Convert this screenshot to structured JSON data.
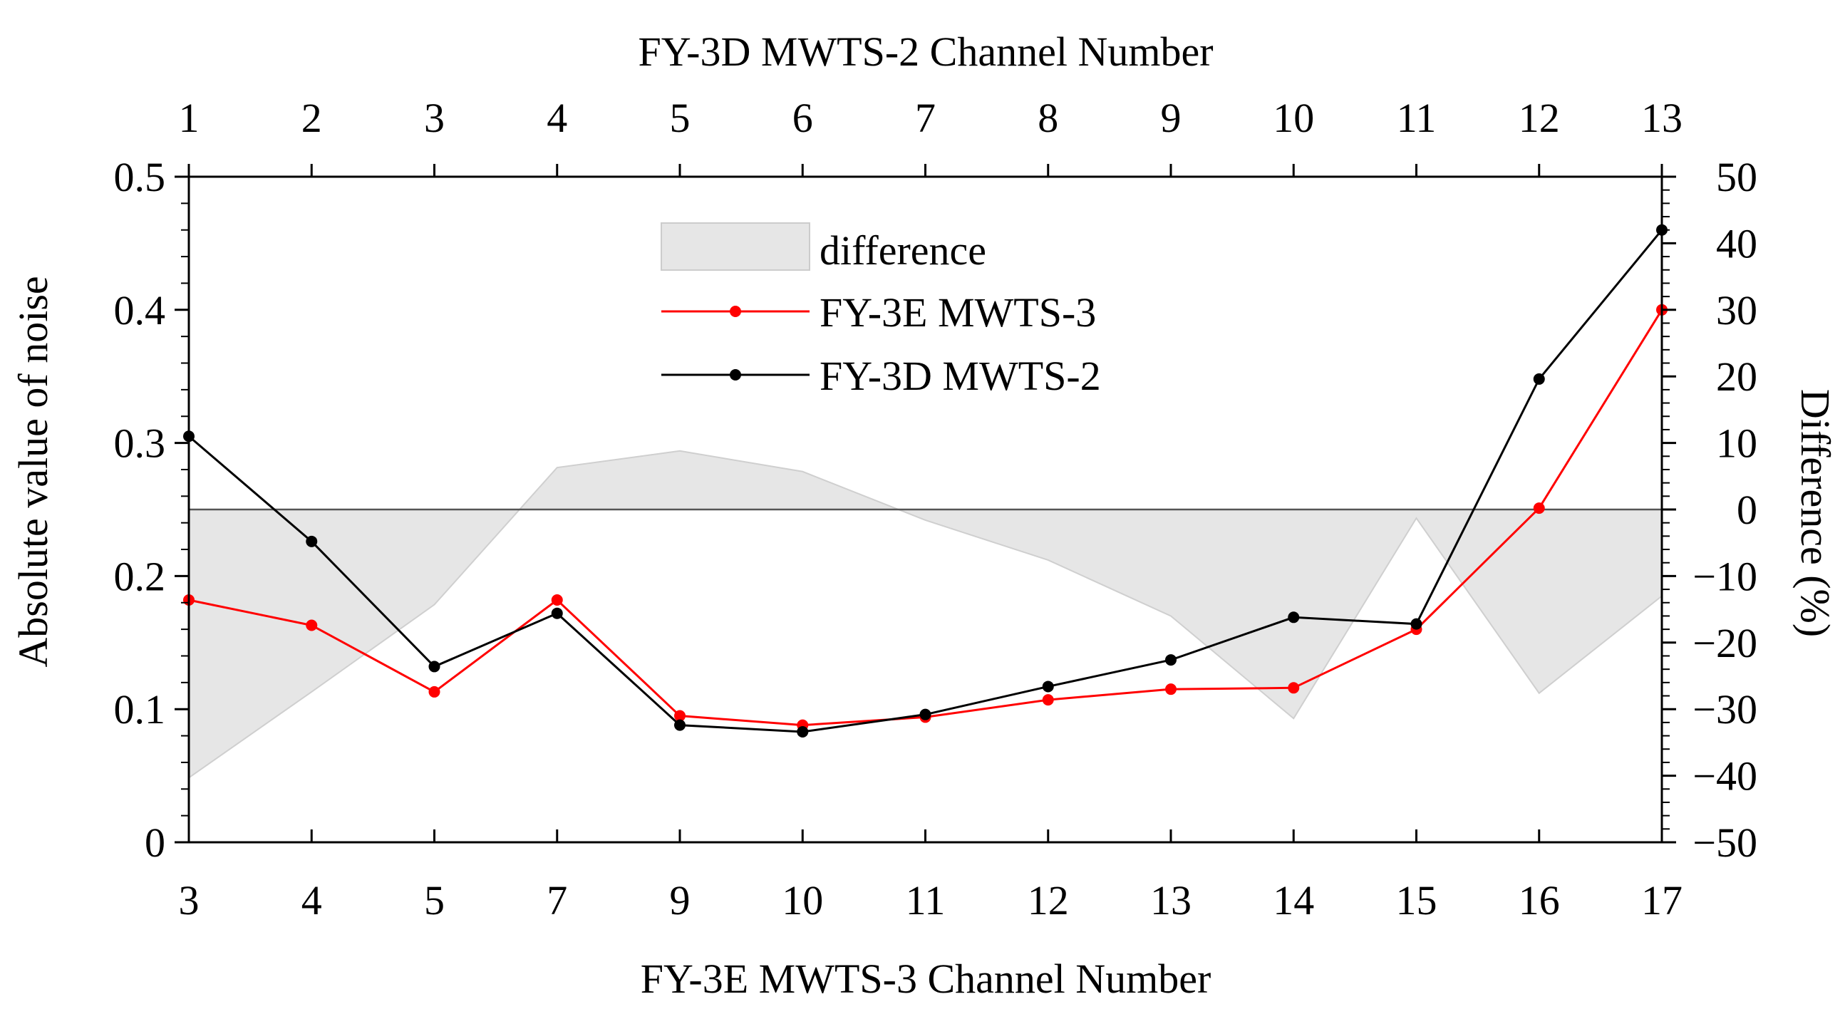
{
  "chart_data": {
    "type": "line",
    "x_categories": [
      "3",
      "4",
      "5",
      "7",
      "9",
      "10",
      "11",
      "12",
      "13",
      "14",
      "15",
      "16",
      "17"
    ],
    "top_categories": [
      "1",
      "2",
      "3",
      "4",
      "5",
      "6",
      "7",
      "8",
      "9",
      "10",
      "11",
      "12",
      "13"
    ],
    "xlabel": "FY-3E MWTS-3 Channel Number",
    "top_xlabel": "FY-3D MWTS-2 Channel Number",
    "ylabel": "Absolute value of noise",
    "y2label": "Difference (%)",
    "ylim": [
      0,
      0.5
    ],
    "y2lim": [
      -50,
      50
    ],
    "y_ticks": [
      "0",
      "0.1",
      "0.2",
      "0.3",
      "0.4",
      "0.5"
    ],
    "y2_ticks": [
      "−50",
      "−40",
      "−30",
      "−20",
      "−10",
      "0",
      "10",
      "20",
      "30",
      "40",
      "50"
    ],
    "series": [
      {
        "name": "FY-3E MWTS-3",
        "axis": "left",
        "color": "#ff0000",
        "values": [
          0.182,
          0.163,
          0.113,
          0.182,
          0.095,
          0.088,
          0.094,
          0.107,
          0.115,
          0.116,
          0.16,
          0.251,
          0.4
        ]
      },
      {
        "name": "FY-3D MWTS-2",
        "axis": "left",
        "color": "#000000",
        "values": [
          0.305,
          0.226,
          0.132,
          0.172,
          0.088,
          0.083,
          0.096,
          0.117,
          0.137,
          0.169,
          0.164,
          0.348,
          0.46
        ]
      },
      {
        "name": "difference",
        "axis": "right",
        "type": "area",
        "color": "#e6e6e6",
        "values": [
          -40.3,
          -27.4,
          -14.3,
          6.3,
          8.8,
          5.7,
          -1.6,
          -7.6,
          -16.0,
          -31.4,
          -1.3,
          -27.6,
          -13.0
        ]
      }
    ],
    "legend": {
      "position": "top-center",
      "entries": [
        "difference",
        "FY-3E MWTS-3",
        "FY-3D MWTS-2"
      ]
    }
  }
}
